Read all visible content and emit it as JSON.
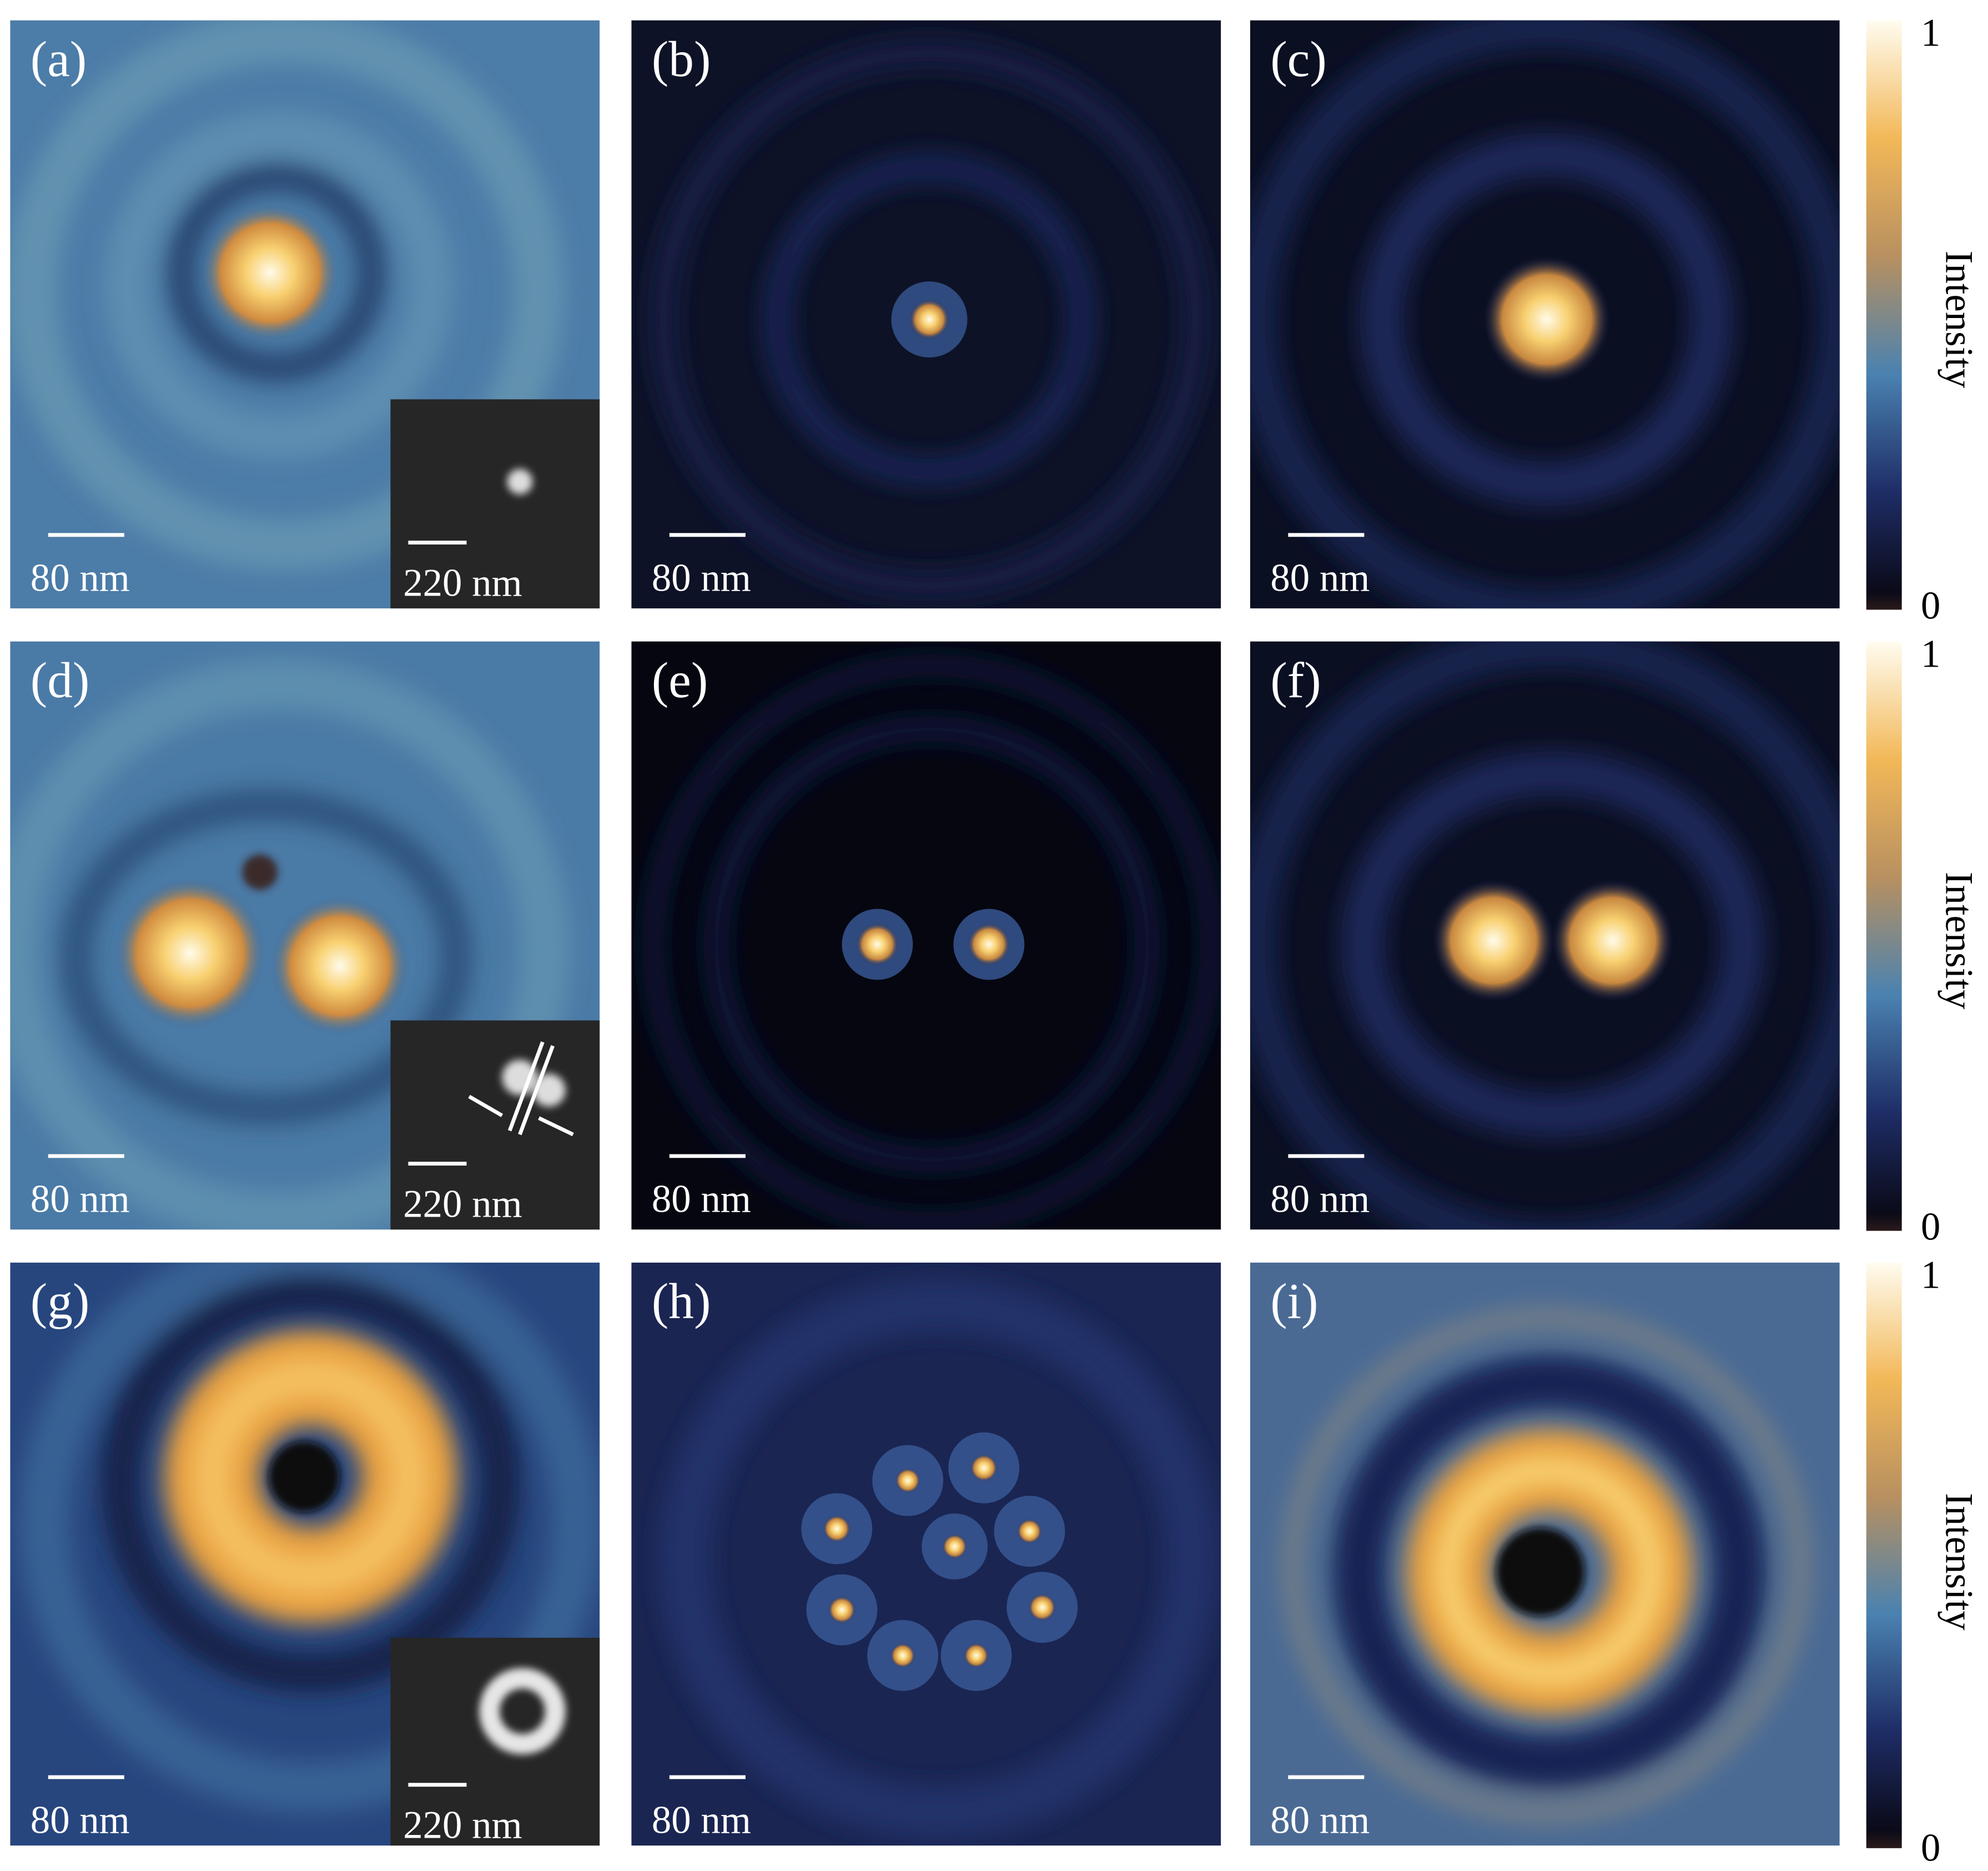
{
  "panels": [
    {
      "label": "(a)",
      "scale_bar": "80 nm",
      "inset_scale_bar": "220 nm"
    },
    {
      "label": "(b)",
      "scale_bar": "80 nm"
    },
    {
      "label": "(c)",
      "scale_bar": "80 nm"
    },
    {
      "label": "(d)",
      "scale_bar": "80 nm",
      "inset_scale_bar": "220 nm"
    },
    {
      "label": "(e)",
      "scale_bar": "80 nm"
    },
    {
      "label": "(f)",
      "scale_bar": "80 nm"
    },
    {
      "label": "(g)",
      "scale_bar": "80 nm",
      "inset_scale_bar": "220 nm"
    },
    {
      "label": "(h)",
      "scale_bar": "80 nm"
    },
    {
      "label": "(i)",
      "scale_bar": "80 nm"
    }
  ],
  "colorbars": [
    {
      "max": 1,
      "min": 0,
      "label": "Intensity"
    },
    {
      "max": 1,
      "min": 0,
      "label": "Intensity"
    },
    {
      "max": 1,
      "min": 0,
      "label": "Intensity"
    }
  ]
}
